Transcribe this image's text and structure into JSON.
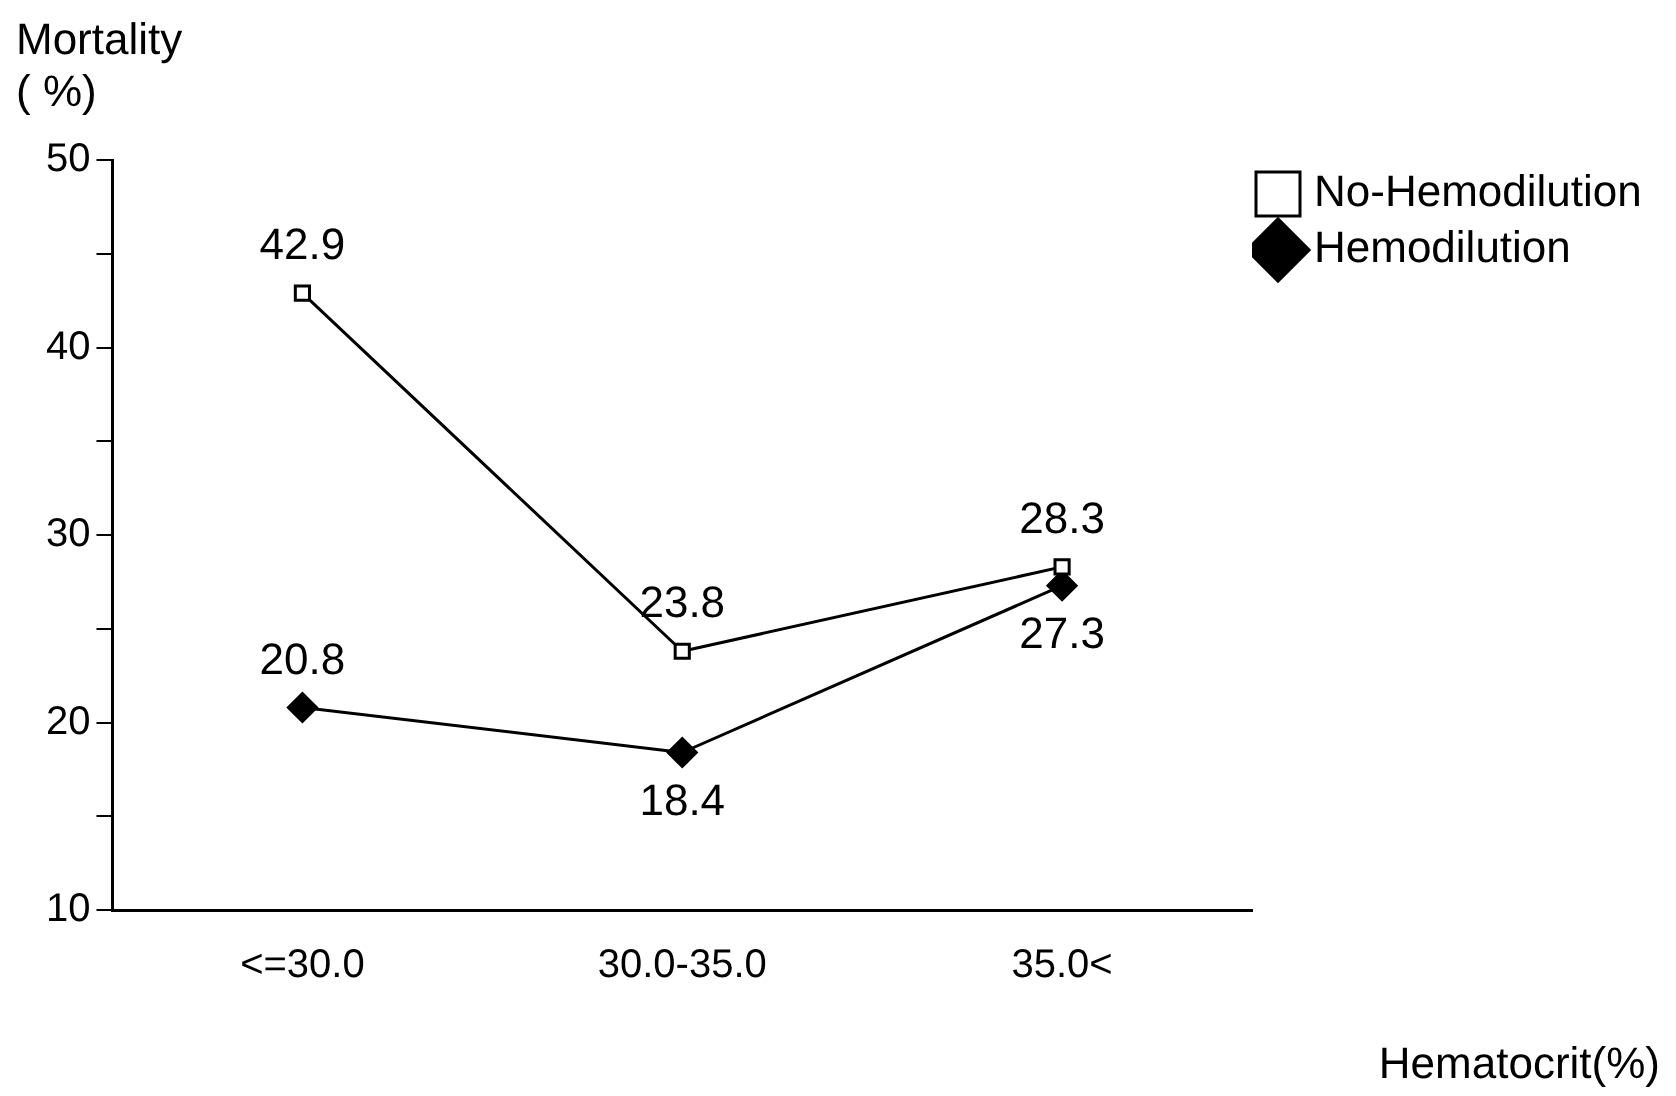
{
  "chart_data": {
    "type": "line",
    "categories": [
      "<=30.0",
      "30.0-35.0",
      "35.0<"
    ],
    "series": [
      {
        "name": "No-Hemodilution",
        "color": "#000000",
        "marker": "square",
        "values": [
          42.9,
          23.8,
          28.3
        ]
      },
      {
        "name": "Hemodilution",
        "color": "#000000",
        "marker": "diamond",
        "values": [
          20.8,
          18.4,
          27.3
        ]
      }
    ],
    "ylabel": "Mortality\n( %)",
    "xlabel": "Hematocrit(%)",
    "ylim": [
      10,
      50
    ],
    "yticks": [
      10,
      {
        "value": 15,
        "label": null
      },
      20,
      {
        "value": 25,
        "label": null
      },
      30,
      {
        "value": 35,
        "label": null
      },
      40,
      {
        "value": 45,
        "label": null
      },
      50
    ],
    "grid": false,
    "legend": "top right",
    "data_labels": true,
    "line_style": "solid"
  }
}
